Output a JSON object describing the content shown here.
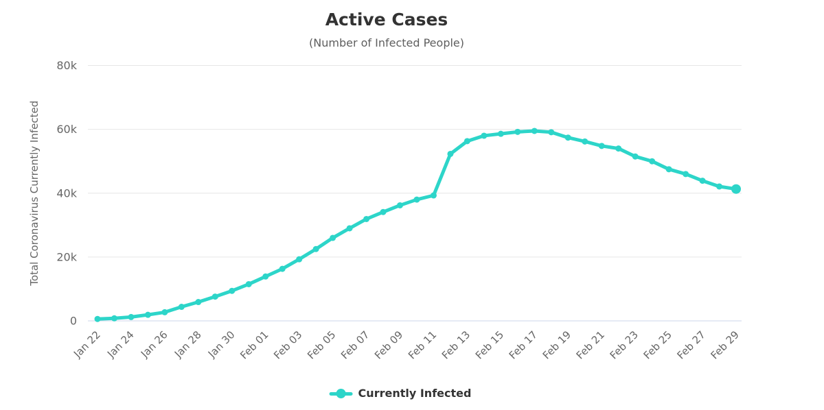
{
  "header": {
    "title": "Active Cases",
    "subtitle": "(Number of Infected People)"
  },
  "legend": {
    "label": "Currently Infected"
  },
  "colors": {
    "series": "#2dd5c9",
    "grid": "#e6e6e6",
    "axis_line": "#ccd6eb",
    "tick_text": "#666666",
    "title_text": "#333333"
  },
  "chart_data": {
    "type": "line",
    "title": "Active Cases",
    "subtitle": "(Number of Infected People)",
    "xlabel": "",
    "ylabel": "Total Coronavirus Currently Infected",
    "ylim": [
      0,
      80000
    ],
    "yticks": [
      0,
      20000,
      40000,
      60000,
      80000
    ],
    "ytick_labels": [
      "0",
      "20k",
      "40k",
      "60k",
      "80k"
    ],
    "x_tick_every": 2,
    "grid": "horizontal",
    "legend_position": "bottom",
    "categories": [
      "Jan 22",
      "Jan 23",
      "Jan 24",
      "Jan 25",
      "Jan 26",
      "Jan 27",
      "Jan 28",
      "Jan 29",
      "Jan 30",
      "Jan 31",
      "Feb 01",
      "Feb 02",
      "Feb 03",
      "Feb 04",
      "Feb 05",
      "Feb 06",
      "Feb 07",
      "Feb 08",
      "Feb 09",
      "Feb 10",
      "Feb 11",
      "Feb 12",
      "Feb 13",
      "Feb 14",
      "Feb 15",
      "Feb 16",
      "Feb 17",
      "Feb 18",
      "Feb 19",
      "Feb 20",
      "Feb 21",
      "Feb 22",
      "Feb 23",
      "Feb 24",
      "Feb 25",
      "Feb 26",
      "Feb 27",
      "Feb 28",
      "Feb 29"
    ],
    "series": [
      {
        "name": "Currently Infected",
        "color": "#2dd5c9",
        "values": [
          600,
          800,
          1200,
          1900,
          2700,
          4400,
          5900,
          7600,
          9400,
          11500,
          13900,
          16300,
          19300,
          22500,
          26000,
          29000,
          31900,
          34100,
          36200,
          38000,
          39300,
          52300,
          56300,
          58000,
          58600,
          59200,
          59500,
          59100,
          57400,
          56200,
          54800,
          54000,
          51500,
          50000,
          47500,
          46000,
          43900,
          42100,
          41300
        ]
      }
    ]
  }
}
